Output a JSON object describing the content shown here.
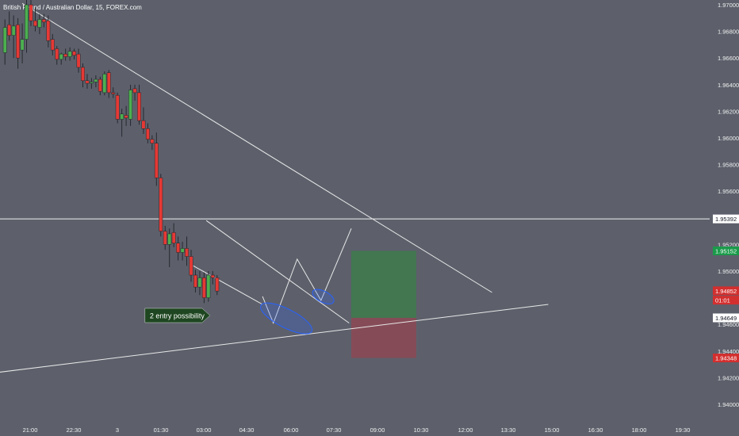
{
  "header": {
    "title": "British Pound / Australian Dollar, 15, FOREX.com"
  },
  "colors": {
    "background": "#5d606b",
    "up_candle": "#4caf50",
    "down_candle": "#e53935",
    "wick": "#26282e",
    "drawing_line": "#e8e8e8",
    "ellipse": "#2962ff",
    "profit_zone": "#3f7a4e",
    "loss_zone": "#8a4a55",
    "price_tag_green": "#1a9a4a",
    "price_tag_red": "#d32f2f",
    "annotation_bg": "#1e4620"
  },
  "chart_data": {
    "type": "candlestick",
    "title": "British Pound / Australian Dollar, 15, FOREX.com",
    "x_ticks": [
      "21:00",
      "22:30",
      "3",
      "01:30",
      "03:00",
      "04:30",
      "06:00",
      "07:30",
      "09:00",
      "10:30",
      "12:00",
      "13:30",
      "15:00",
      "16:30",
      "18:00",
      "19:30"
    ],
    "y_ticks": [
      "1.97000",
      "1.96800",
      "1.96600",
      "1.96400",
      "1.96200",
      "1.96000",
      "1.95800",
      "1.95600",
      "1.95200",
      "1.95000",
      "1.94600",
      "1.94400",
      "1.94200",
      "1.94000"
    ],
    "ylim": [
      1.939,
      1.9705
    ],
    "horizontal_level": 1.95392,
    "price_tags": [
      {
        "label": "1.95392",
        "value": 1.95392,
        "style": "plain"
      },
      {
        "label": "1.95152",
        "value": 1.95152,
        "style": "green"
      },
      {
        "label": "1.94852",
        "value": 1.94852,
        "style": "red"
      },
      {
        "label": "01:01",
        "value": 1.94782,
        "style": "red"
      },
      {
        "label": "1.94649",
        "value": 1.94649,
        "style": "plain"
      },
      {
        "label": "1.94348",
        "value": 1.94348,
        "style": "red"
      }
    ],
    "candles": [
      {
        "o": 1.9664,
        "h": 1.9689,
        "l": 1.9655,
        "c": 1.9683
      },
      {
        "o": 1.9685,
        "h": 1.9695,
        "l": 1.9673,
        "c": 1.9677
      },
      {
        "o": 1.9677,
        "h": 1.9692,
        "l": 1.966,
        "c": 1.9684
      },
      {
        "o": 1.9685,
        "h": 1.969,
        "l": 1.9652,
        "c": 1.966
      },
      {
        "o": 1.9666,
        "h": 1.9686,
        "l": 1.9656,
        "c": 1.9674
      },
      {
        "o": 1.9674,
        "h": 1.9705,
        "l": 1.9664,
        "c": 1.97
      },
      {
        "o": 1.97,
        "h": 1.9705,
        "l": 1.9684,
        "c": 1.9688
      },
      {
        "o": 1.9688,
        "h": 1.9698,
        "l": 1.968,
        "c": 1.9684
      },
      {
        "o": 1.9683,
        "h": 1.9693,
        "l": 1.9678,
        "c": 1.9689
      },
      {
        "o": 1.9689,
        "h": 1.9693,
        "l": 1.9683,
        "c": 1.9687
      },
      {
        "o": 1.9688,
        "h": 1.9692,
        "l": 1.9668,
        "c": 1.9673
      },
      {
        "o": 1.9674,
        "h": 1.9678,
        "l": 1.9662,
        "c": 1.9666
      },
      {
        "o": 1.9667,
        "h": 1.9669,
        "l": 1.9655,
        "c": 1.9659
      },
      {
        "o": 1.9659,
        "h": 1.9664,
        "l": 1.9655,
        "c": 1.9663
      },
      {
        "o": 1.9663,
        "h": 1.9667,
        "l": 1.9658,
        "c": 1.9661
      },
      {
        "o": 1.9661,
        "h": 1.9668,
        "l": 1.9658,
        "c": 1.9665
      },
      {
        "o": 1.9665,
        "h": 1.9667,
        "l": 1.9659,
        "c": 1.9662
      },
      {
        "o": 1.9663,
        "h": 1.9667,
        "l": 1.9649,
        "c": 1.9653
      },
      {
        "o": 1.9653,
        "h": 1.9656,
        "l": 1.9638,
        "c": 1.9643
      },
      {
        "o": 1.9643,
        "h": 1.9648,
        "l": 1.9637,
        "c": 1.9641
      },
      {
        "o": 1.9641,
        "h": 1.9645,
        "l": 1.9637,
        "c": 1.9642
      },
      {
        "o": 1.9642,
        "h": 1.9647,
        "l": 1.9638,
        "c": 1.9644
      },
      {
        "o": 1.9644,
        "h": 1.9646,
        "l": 1.9632,
        "c": 1.9635
      },
      {
        "o": 1.9634,
        "h": 1.965,
        "l": 1.9632,
        "c": 1.9648
      },
      {
        "o": 1.9649,
        "h": 1.9651,
        "l": 1.963,
        "c": 1.9634
      },
      {
        "o": 1.9634,
        "h": 1.9638,
        "l": 1.963,
        "c": 1.9633
      },
      {
        "o": 1.9632,
        "h": 1.9634,
        "l": 1.9611,
        "c": 1.9614
      },
      {
        "o": 1.9614,
        "h": 1.9622,
        "l": 1.9601,
        "c": 1.9618
      },
      {
        "o": 1.9617,
        "h": 1.9624,
        "l": 1.9609,
        "c": 1.9615
      },
      {
        "o": 1.9614,
        "h": 1.964,
        "l": 1.9609,
        "c": 1.9636
      },
      {
        "o": 1.9637,
        "h": 1.964,
        "l": 1.9628,
        "c": 1.9634
      },
      {
        "o": 1.9634,
        "h": 1.964,
        "l": 1.961,
        "c": 1.9613
      },
      {
        "o": 1.9613,
        "h": 1.9623,
        "l": 1.9603,
        "c": 1.9607
      },
      {
        "o": 1.9607,
        "h": 1.9611,
        "l": 1.9596,
        "c": 1.9599
      },
      {
        "o": 1.9599,
        "h": 1.9602,
        "l": 1.9591,
        "c": 1.9596
      },
      {
        "o": 1.9596,
        "h": 1.9604,
        "l": 1.9564,
        "c": 1.957
      },
      {
        "o": 1.957,
        "h": 1.9573,
        "l": 1.9526,
        "c": 1.953
      },
      {
        "o": 1.953,
        "h": 1.9534,
        "l": 1.9516,
        "c": 1.952
      },
      {
        "o": 1.952,
        "h": 1.9532,
        "l": 1.9503,
        "c": 1.9528
      },
      {
        "o": 1.9529,
        "h": 1.9536,
        "l": 1.9518,
        "c": 1.9521
      },
      {
        "o": 1.9521,
        "h": 1.9526,
        "l": 1.9508,
        "c": 1.9514
      },
      {
        "o": 1.9514,
        "h": 1.9522,
        "l": 1.9508,
        "c": 1.9517
      },
      {
        "o": 1.9517,
        "h": 1.9526,
        "l": 1.9504,
        "c": 1.9511
      },
      {
        "o": 1.9511,
        "h": 1.9516,
        "l": 1.9492,
        "c": 1.9497
      },
      {
        "o": 1.9497,
        "h": 1.9501,
        "l": 1.9484,
        "c": 1.9488
      },
      {
        "o": 1.9488,
        "h": 1.95,
        "l": 1.9482,
        "c": 1.9495
      },
      {
        "o": 1.9495,
        "h": 1.9499,
        "l": 1.9476,
        "c": 1.948
      },
      {
        "o": 1.948,
        "h": 1.95,
        "l": 1.9477,
        "c": 1.9497
      },
      {
        "o": 1.9497,
        "h": 1.95,
        "l": 1.949,
        "c": 1.9495
      },
      {
        "o": 1.9495,
        "h": 1.9497,
        "l": 1.9482,
        "c": 1.9485
      }
    ],
    "trendlines": [
      {
        "name": "upper-trendline",
        "from": {
          "bar": 4.5,
          "price": 1.9701
        },
        "to": {
          "bar": 113,
          "price": 1.9484
        }
      },
      {
        "name": "lower-support-line",
        "from": {
          "bar": -1,
          "price": 1.9424
        },
        "to": {
          "bar": 126,
          "price": 1.9475
        }
      },
      {
        "name": "channel-upper",
        "from": {
          "bar": 47,
          "price": 1.9538
        },
        "to": {
          "bar": 80,
          "price": 1.9461
        }
      },
      {
        "name": "channel-lower",
        "from": {
          "bar": 44,
          "price": 1.9504
        },
        "to": {
          "bar": 60,
          "price": 1.9475
        }
      }
    ],
    "projection_path": [
      {
        "bar": 60,
        "price": 1.9481
      },
      {
        "bar": 62.5,
        "price": 1.9461
      },
      {
        "bar": 68,
        "price": 1.9509
      },
      {
        "bar": 73.5,
        "price": 1.9478
      },
      {
        "bar": 80.5,
        "price": 1.9532
      }
    ],
    "ellipses": [
      {
        "name": "entry-zone-1",
        "cx_bar": 65.5,
        "cy_price": 1.94645,
        "rx_bars": 6.6,
        "ry_price": 0.0007,
        "rotation": 27
      },
      {
        "name": "entry-zone-2",
        "cx_bar": 74,
        "cy_price": 1.94808,
        "rx_bars": 2.7,
        "ry_price": 0.00042,
        "rotation": 27
      }
    ],
    "position_tool": {
      "start_bar": 80.5,
      "end_bar": 95.5,
      "entry": 1.94649,
      "target": 1.95152,
      "stop": 1.94348
    },
    "annotation": {
      "text": "2 entry possibility",
      "bar": 47.5,
      "price": 1.94649
    }
  }
}
